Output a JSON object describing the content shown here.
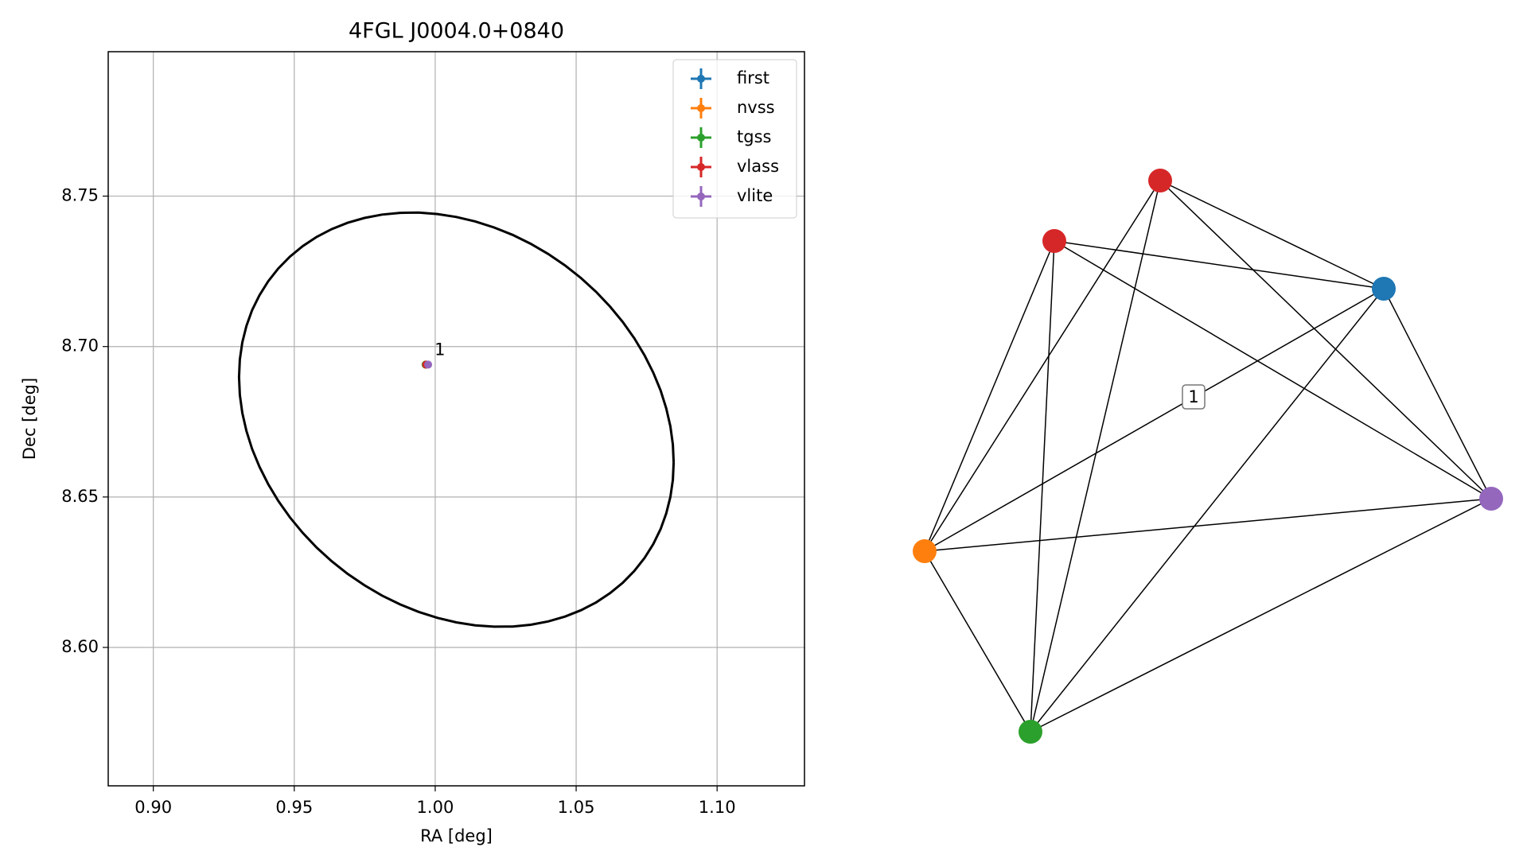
{
  "chart_data": [
    {
      "type": "scatter",
      "title": "4FGL J0004.0+0840",
      "xlabel": "RA [deg]",
      "ylabel": "Dec [deg]",
      "xlim": [
        0.884,
        1.131
      ],
      "ylim": [
        8.554,
        8.798
      ],
      "xticks": [
        {
          "value": 0.9,
          "label": "0.90"
        },
        0.95,
        {
          "value": 1.0,
          "label": "1.00"
        },
        1.05,
        {
          "value": 1.1,
          "label": "1.10"
        }
      ],
      "yticks": [
        {
          "value": 8.6,
          "label": "8.60"
        },
        8.65,
        {
          "value": 8.7,
          "label": "8.70"
        },
        8.75
      ],
      "grid": true,
      "legend": "upper right",
      "series": [
        {
          "name": "first",
          "color": "#1f77b4",
          "x": [
            0.9967
          ],
          "y": [
            8.694
          ]
        },
        {
          "name": "nvss",
          "color": "#ff7f0e",
          "x": [
            0.9966
          ],
          "y": [
            8.694
          ]
        },
        {
          "name": "tgss",
          "color": "#2ca02c",
          "x": [
            0.9966
          ],
          "y": [
            8.694
          ]
        },
        {
          "name": "vlass",
          "color": "#d62728",
          "x": [
            0.9968
          ],
          "y": [
            8.694
          ]
        },
        {
          "name": "vlite",
          "color": "#9467bd",
          "x": [
            0.9975
          ],
          "y": [
            8.694
          ]
        }
      ],
      "annotation": "1",
      "ellipse": {
        "center_x": 1.0075,
        "center_y": 8.6757,
        "radius_x": 0.0771,
        "radius_y": 0.06885,
        "phase": -0.2075,
        "color": "#000000"
      }
    },
    {
      "type": "network",
      "nodes": [
        {
          "color": "#1f77b4"
        },
        {
          "color": "#ff7f0e"
        },
        {
          "color": "#2ca02c"
        },
        {
          "color": "#d62728"
        },
        {
          "color": "#d62728"
        },
        {
          "color": "#9467bd"
        }
      ],
      "edges": [
        [
          0,
          1
        ],
        [
          0,
          2
        ],
        [
          0,
          3
        ],
        [
          0,
          4
        ],
        [
          0,
          5
        ],
        [
          1,
          2
        ],
        [
          1,
          3
        ],
        [
          1,
          4
        ],
        [
          1,
          5
        ],
        [
          2,
          3
        ],
        [
          2,
          4
        ],
        [
          2,
          5
        ],
        [
          3,
          5
        ],
        [
          4,
          5
        ]
      ],
      "edge_label": "1"
    }
  ]
}
